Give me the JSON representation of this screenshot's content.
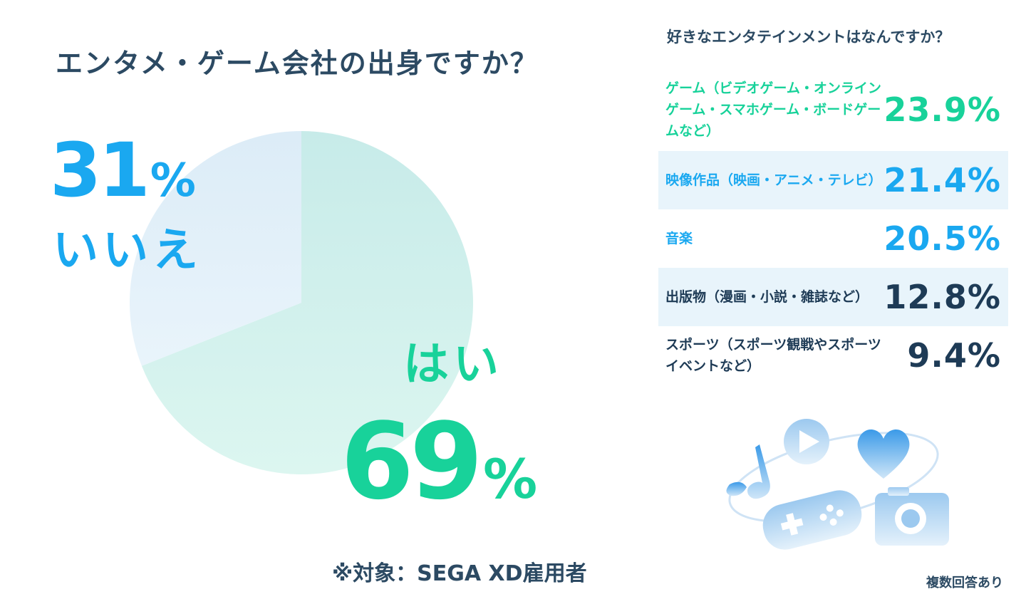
{
  "chart_data": [
    {
      "type": "pie",
      "title": "エンタメ・ゲーム会社の出身ですか？",
      "categories": [
        "はい",
        "いいえ"
      ],
      "values": [
        69,
        31
      ],
      "unit": "%",
      "colors": [
        "#d2f1ec",
        "#e2eff9"
      ],
      "label_colors": {
        "yes": "#18d29a",
        "no": "#1aa8f0"
      },
      "note": "※対象：SEGA XD雇用者"
    },
    {
      "type": "table",
      "title": "好きなエンタテインメントはなんですか？",
      "rows": [
        {
          "label": "ゲーム（ビデオゲーム・オンラインゲーム・スマホゲーム・ボードゲームなど）",
          "value": "23.9%"
        },
        {
          "label": "映像作品（映画・アニメ・テレビ）",
          "value": "21.4%"
        },
        {
          "label": "音楽",
          "value": "20.5%"
        },
        {
          "label": "出版物（漫画・小説・雑誌など）",
          "value": "12.8%"
        },
        {
          "label": "スポーツ（スポーツ観戦やスポーツイベントなど）",
          "value": "9.4%"
        }
      ],
      "footnote": "複数回答あり"
    }
  ],
  "pie_labels": {
    "no_num": "31",
    "no_sym": "%",
    "no_label": "いいえ",
    "yes_label": "はい",
    "yes_num": "69",
    "yes_sym": "%"
  },
  "illustration": {
    "icons": [
      "music-note-icon",
      "play-icon",
      "heart-icon",
      "gamepad-icon",
      "camera-icon"
    ]
  }
}
